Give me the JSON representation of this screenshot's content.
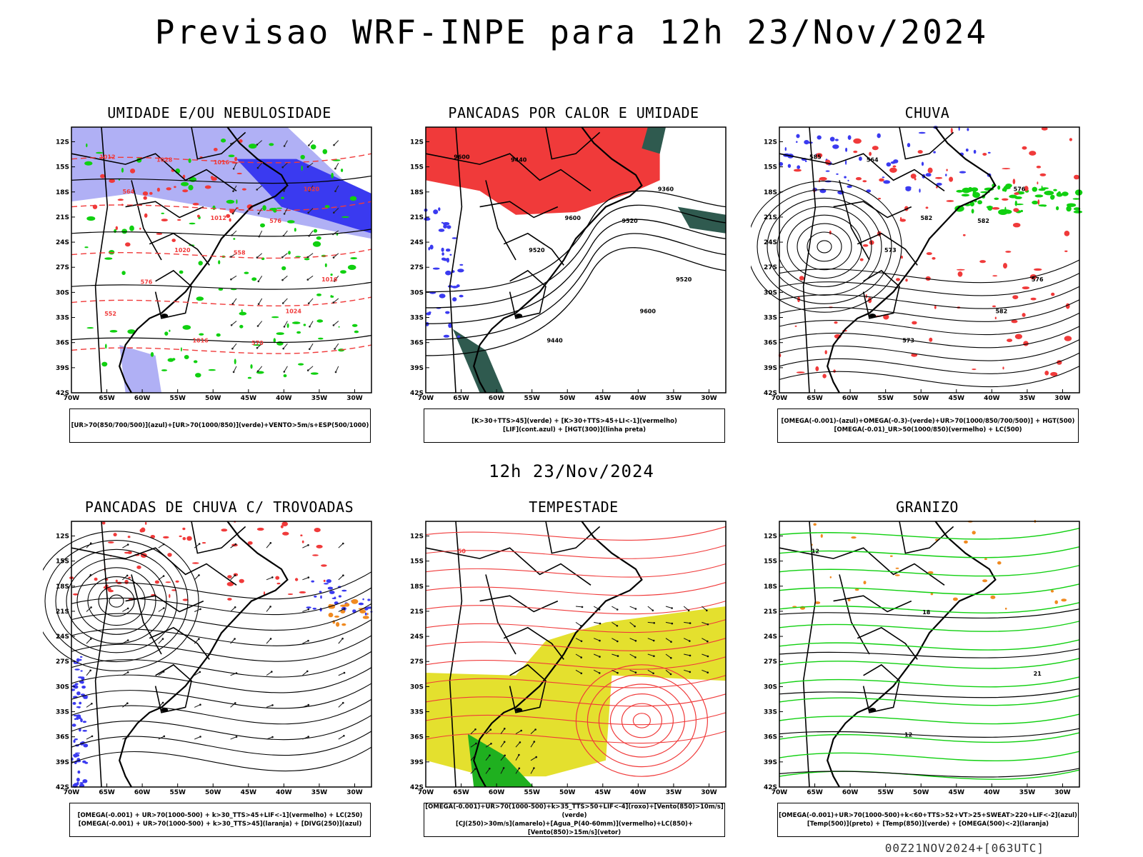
{
  "title": "Previsao WRF-INPE  para 12h 23/Nov/2024",
  "subtitle": "12h 23/Nov/2024",
  "footer": "00Z21NOV2024+[063UTC]",
  "lat_ticks": [
    "12S",
    "15S",
    "18S",
    "21S",
    "24S",
    "27S",
    "30S",
    "33S",
    "36S",
    "39S",
    "42S"
  ],
  "lon_ticks": [
    "70W",
    "65W",
    "60W",
    "55W",
    "50W",
    "45W",
    "40W",
    "35W",
    "30W"
  ],
  "colors": {
    "blue": "#3a3af0",
    "lavender": "#b0b0f5",
    "green": "#10d010",
    "red": "#f03a3a",
    "orange": "#f08a20",
    "darkteal": "#2f5a4f",
    "yellow": "#e4e02e"
  },
  "panels": [
    {
      "title": "UMIDADE E/OU NEBULOSIDADE",
      "legend": [
        "[UR>70(850/700/500)](azul)+[UR>70(1000/850)](verde)+VENTO>5m/s+ESP(500/1000)"
      ],
      "labels": [
        "1012",
        "1012",
        "1016",
        "1016",
        "1020",
        "1020",
        "1024",
        "1028",
        "576",
        "576",
        "570",
        "564",
        "558",
        "552",
        "1016"
      ]
    },
    {
      "title": "PANCADAS POR CALOR E UMIDADE",
      "legend": [
        "[K>30+TTS>45](verde) + [K>30+TTS>45+LI<-1](vermelho)",
        "[LIF](cont.azul) + [HGT(300)](linha preta)"
      ],
      "labels": [
        "9600",
        "9600",
        "9520",
        "9440",
        "9360",
        "9520",
        "9600",
        "9440",
        "9520"
      ]
    },
    {
      "title": "CHUVA",
      "legend": [
        "[OMEGA(-0.001)-(azul)+OMEGA(-0.3)-(verde)+UR>70(1000/850/700/500)] + HGT(500)",
        "[OMEGA(-0.01)_UR>50(1000/850)(vermelho) + LC(500)"
      ],
      "labels": [
        "585",
        "582",
        "576",
        "573",
        "576",
        "573",
        "582",
        "564",
        "582"
      ]
    },
    {
      "title": "PANCADAS DE CHUVA C/ TROVOADAS",
      "legend": [
        "[OMEGA(-0.001) + UR>70(1000-500) + k>30_TTS>45+LIF<-1](vermelho) + LC(250)",
        "[OMEGA(-0.001) + UR>70(1000-500) + k>30_TTS>45](laranja) + [DIVG(250)](azul)"
      ],
      "labels": []
    },
    {
      "title": "TEMPESTADE",
      "legend": [
        "[OMEGA(-0.001)+UR>70(1000-500)+k>35_TTS>50+LIF<-4](roxo)+[Vento(850)>10m/s](verde)",
        "[CJ(250)>30m/s](amarelo)+[Agua_P(40-60mm)](vermelho)+LC(850)+[Vento(850)>15m/s](vetor)"
      ],
      "labels": [
        "50"
      ]
    },
    {
      "title": "GRANIZO",
      "legend": [
        "[OMEGA(-0.001)+UR>70(1000-500)+k<60+TTS>52+VT>25+SWEAT>220+LIF<-2](azul)",
        "[Temp(500)](preto) + [Temp(850)](verde) + [OMEGA(500)<-2](laranja)"
      ],
      "labels": [
        "12",
        "18",
        "21",
        "12"
      ]
    }
  ]
}
